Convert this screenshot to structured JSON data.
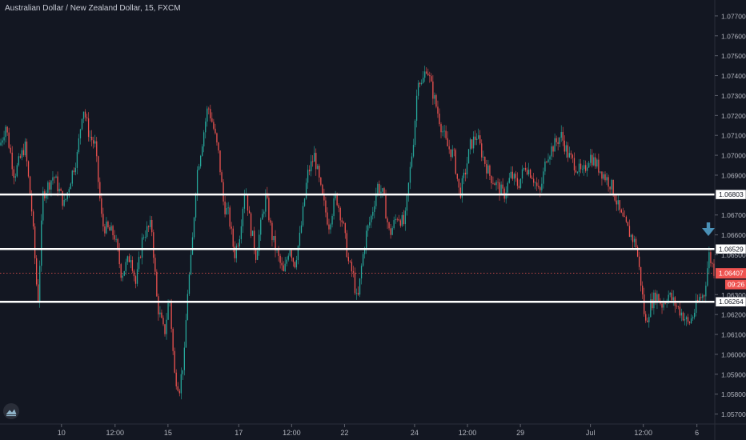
{
  "header": {
    "title": "Australian Dollar / New Zealand Dollar, 15, FXCM"
  },
  "chart_data": {
    "type": "candlestick",
    "symbol": "AUDNZD",
    "interval": "15",
    "source": "FXCM",
    "ylim": [
      1.0565,
      1.0778
    ],
    "y_ticks": [
      "1.07700",
      "1.07600",
      "1.07500",
      "1.07400",
      "1.07300",
      "1.07200",
      "1.07100",
      "1.07000",
      "1.06900",
      "1.06700",
      "1.06600",
      "1.06500",
      "1.06300",
      "1.06200",
      "1.06100",
      "1.06000",
      "1.05900",
      "1.05800",
      "1.05700"
    ],
    "y_tick_values": [
      1.077,
      1.076,
      1.075,
      1.074,
      1.073,
      1.072,
      1.071,
      1.07,
      1.069,
      1.067,
      1.066,
      1.065,
      1.063,
      1.062,
      1.061,
      1.06,
      1.059,
      1.058,
      1.057
    ],
    "x_ticks": [
      {
        "label": "10",
        "t": 0.086
      },
      {
        "label": "12:00",
        "t": 0.161
      },
      {
        "label": "15",
        "t": 0.235
      },
      {
        "label": "17",
        "t": 0.334
      },
      {
        "label": "12:00",
        "t": 0.408
      },
      {
        "label": "22",
        "t": 0.482
      },
      {
        "label": "24",
        "t": 0.58
      },
      {
        "label": "12:00",
        "t": 0.654
      },
      {
        "label": "29",
        "t": 0.728
      },
      {
        "label": "Jul",
        "t": 0.826
      },
      {
        "label": "12:00",
        "t": 0.9
      },
      {
        "label": "6",
        "t": 0.975
      }
    ],
    "horizontal_levels": [
      {
        "label": "1.06803",
        "value": 1.06803
      },
      {
        "label": "1.06529",
        "value": 1.06529
      },
      {
        "label": "1.06264",
        "value": 1.06264
      }
    ],
    "last_price": {
      "label": "1.06407",
      "value": 1.06407,
      "countdown": "09:26"
    },
    "path": [
      [
        0.0,
        1.0705
      ],
      [
        0.008,
        1.0715
      ],
      [
        0.02,
        1.069
      ],
      [
        0.035,
        1.0705
      ],
      [
        0.045,
        1.067
      ],
      [
        0.053,
        1.0625
      ],
      [
        0.06,
        1.068
      ],
      [
        0.075,
        1.069
      ],
      [
        0.09,
        1.0675
      ],
      [
        0.1,
        1.069
      ],
      [
        0.108,
        1.07
      ],
      [
        0.116,
        1.0725
      ],
      [
        0.125,
        1.071
      ],
      [
        0.133,
        1.0705
      ],
      [
        0.143,
        1.0665
      ],
      [
        0.16,
        1.066
      ],
      [
        0.17,
        1.064
      ],
      [
        0.183,
        1.065
      ],
      [
        0.19,
        1.0635
      ],
      [
        0.2,
        1.066
      ],
      [
        0.212,
        1.0665
      ],
      [
        0.22,
        1.0625
      ],
      [
        0.23,
        1.061
      ],
      [
        0.237,
        1.063
      ],
      [
        0.244,
        1.059
      ],
      [
        0.251,
        1.0583
      ],
      [
        0.258,
        1.06
      ],
      [
        0.262,
        1.063
      ],
      [
        0.268,
        1.065
      ],
      [
        0.275,
        1.069
      ],
      [
        0.282,
        1.0705
      ],
      [
        0.291,
        1.0725
      ],
      [
        0.298,
        1.0715
      ],
      [
        0.306,
        1.07
      ],
      [
        0.313,
        1.0675
      ],
      [
        0.32,
        1.067
      ],
      [
        0.328,
        1.065
      ],
      [
        0.335,
        1.066
      ],
      [
        0.343,
        1.0685
      ],
      [
        0.35,
        1.0665
      ],
      [
        0.358,
        1.065
      ],
      [
        0.365,
        1.0665
      ],
      [
        0.372,
        1.068
      ],
      [
        0.38,
        1.066
      ],
      [
        0.388,
        1.065
      ],
      [
        0.397,
        1.064
      ],
      [
        0.405,
        1.0655
      ],
      [
        0.412,
        1.0645
      ],
      [
        0.42,
        1.066
      ],
      [
        0.43,
        1.069
      ],
      [
        0.44,
        1.07
      ],
      [
        0.45,
        1.068
      ],
      [
        0.46,
        1.0665
      ],
      [
        0.47,
        1.068
      ],
      [
        0.48,
        1.0665
      ],
      [
        0.488,
        1.0645
      ],
      [
        0.494,
        1.064
      ],
      [
        0.5,
        1.0625
      ],
      [
        0.506,
        1.0645
      ],
      [
        0.512,
        1.066
      ],
      [
        0.52,
        1.067
      ],
      [
        0.528,
        1.0685
      ],
      [
        0.536,
        1.068
      ],
      [
        0.545,
        1.066
      ],
      [
        0.556,
        1.067
      ],
      [
        0.566,
        1.0665
      ],
      [
        0.573,
        1.069
      ],
      [
        0.579,
        1.071
      ],
      [
        0.585,
        1.074
      ],
      [
        0.59,
        1.0735
      ],
      [
        0.597,
        1.0745
      ],
      [
        0.603,
        1.0735
      ],
      [
        0.61,
        1.0725
      ],
      [
        0.617,
        1.0715
      ],
      [
        0.625,
        1.0705
      ],
      [
        0.635,
        1.07
      ],
      [
        0.643,
        1.068
      ],
      [
        0.65,
        1.069
      ],
      [
        0.658,
        1.0705
      ],
      [
        0.667,
        1.071
      ],
      [
        0.675,
        1.07
      ],
      [
        0.685,
        1.069
      ],
      [
        0.695,
        1.0685
      ],
      [
        0.705,
        1.068
      ],
      [
        0.715,
        1.069
      ],
      [
        0.725,
        1.0685
      ],
      [
        0.735,
        1.0695
      ],
      [
        0.745,
        1.069
      ],
      [
        0.755,
        1.068
      ],
      [
        0.765,
        1.07
      ],
      [
        0.775,
        1.0705
      ],
      [
        0.785,
        1.071
      ],
      [
        0.795,
        1.07
      ],
      [
        0.805,
        1.0695
      ],
      [
        0.815,
        1.069
      ],
      [
        0.825,
        1.07
      ],
      [
        0.835,
        1.0695
      ],
      [
        0.845,
        1.069
      ],
      [
        0.855,
        1.0685
      ],
      [
        0.86,
        1.068
      ],
      [
        0.868,
        1.067
      ],
      [
        0.875,
        1.0665
      ],
      [
        0.882,
        1.066
      ],
      [
        0.89,
        1.0655
      ],
      [
        0.897,
        1.0635
      ],
      [
        0.903,
        1.0615
      ],
      [
        0.91,
        1.0625
      ],
      [
        0.918,
        1.063
      ],
      [
        0.926,
        1.0625
      ],
      [
        0.935,
        1.063
      ],
      [
        0.945,
        1.0625
      ],
      [
        0.955,
        1.062
      ],
      [
        0.963,
        1.0615
      ],
      [
        0.97,
        1.062
      ],
      [
        0.978,
        1.0628
      ],
      [
        0.985,
        1.063
      ],
      [
        0.992,
        1.065
      ],
      [
        1.0,
        1.0641
      ]
    ]
  }
}
